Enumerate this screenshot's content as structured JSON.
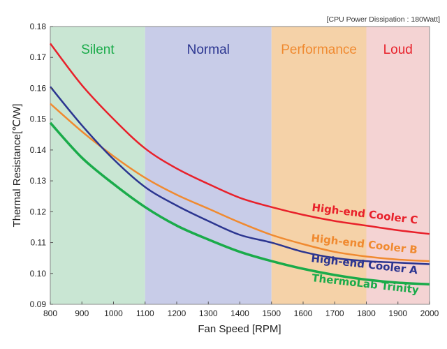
{
  "chart_data": {
    "type": "line",
    "annotation": "[CPU Power Dissipation : 180Watt]",
    "xlabel": "Fan Speed [RPM]",
    "ylabel": "Thermal Resistance[℃/W]",
    "xlim": [
      800,
      2000
    ],
    "ylim": [
      0.09,
      0.18
    ],
    "grid": false,
    "x_ticks": [
      "800",
      "900",
      "1000",
      "1100",
      "1200",
      "1300",
      "1400",
      "1500",
      "1600",
      "1700",
      "1800",
      "1900",
      "2000"
    ],
    "y_ticks": [
      "0.09",
      "0.10",
      "0.11",
      "0.12",
      "0.13",
      "0.14",
      "0.15",
      "0.16",
      "0.17",
      "0.18"
    ],
    "bands": [
      {
        "label": "Silent",
        "from": 800,
        "to": 1100,
        "fill": "#c9e6d3",
        "text_color": "#1aab4a"
      },
      {
        "label": "Normal",
        "from": 1100,
        "to": 1500,
        "fill": "#c8cce8",
        "text_color": "#2b3590"
      },
      {
        "label": "Performance",
        "from": 1500,
        "to": 1800,
        "fill": "#f5d2a8",
        "text_color": "#f08a30"
      },
      {
        "label": "Loud",
        "from": 1800,
        "to": 2000,
        "fill": "#f4d3d3",
        "text_color": "#e8202a"
      }
    ],
    "x": [
      800,
      900,
      1000,
      1100,
      1200,
      1300,
      1400,
      1500,
      1600,
      1700,
      1800,
      1900,
      2000
    ],
    "series": [
      {
        "name": "High-end Cooler C",
        "color": "#e8202a",
        "values": [
          0.1745,
          0.161,
          0.15,
          0.1405,
          0.134,
          0.129,
          0.1245,
          0.1215,
          0.119,
          0.117,
          0.1155,
          0.114,
          0.1128
        ]
      },
      {
        "name": "High-end Cooler B",
        "color": "#f08a30",
        "values": [
          0.155,
          0.146,
          0.138,
          0.131,
          0.1255,
          0.121,
          0.1165,
          0.1125,
          0.1095,
          0.107,
          0.1055,
          0.1045,
          0.104
        ]
      },
      {
        "name": "High-end Cooler A",
        "color": "#2b3590",
        "values": [
          0.1605,
          0.148,
          0.137,
          0.128,
          0.122,
          0.117,
          0.1125,
          0.11,
          0.107,
          0.105,
          0.104,
          0.1035,
          0.103
        ]
      },
      {
        "name": "ThermoLab Trinity",
        "color": "#1aab4a",
        "values": [
          0.1488,
          0.1375,
          0.129,
          0.1215,
          0.1155,
          0.111,
          0.107,
          0.104,
          0.1015,
          0.0995,
          0.098,
          0.097,
          0.0965
        ]
      }
    ]
  }
}
